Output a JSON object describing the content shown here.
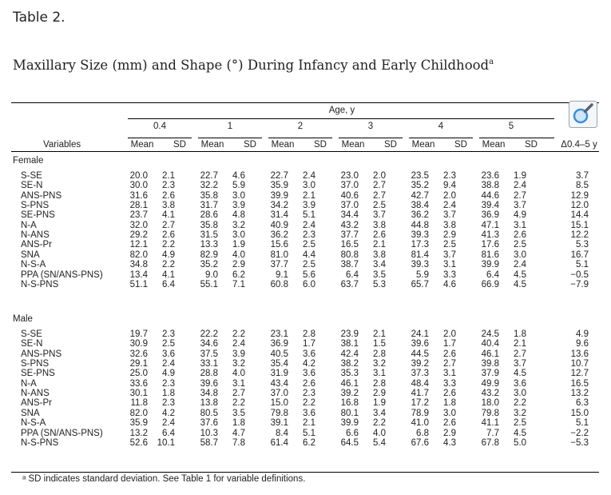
{
  "page_label": "Table 2.",
  "caption": {
    "text": "Maxillary Size (mm) and Shape (°) During Infancy and Early Childhood",
    "superscript": "a"
  },
  "table": {
    "age_header": "Age, y",
    "age_groups": [
      "0.4",
      "1",
      "2",
      "3",
      "4",
      "5"
    ],
    "variables_header": "Variables",
    "mean_label": "Mean",
    "sd_label": "SD",
    "delta_header": "Δ0.4–5 y",
    "sections": [
      {
        "name": "Female",
        "rows": [
          {
            "variable": "S-SE",
            "cells": [
              "20.0",
              "2.1",
              "22.7",
              "4.6",
              "22.7",
              "2.4",
              "23.0",
              "2.0",
              "23.5",
              "2.3",
              "23.6",
              "1.9",
              "3.7"
            ]
          },
          {
            "variable": "SE-N",
            "cells": [
              "30.0",
              "2.3",
              "32.2",
              "5.9",
              "35.9",
              "3.0",
              "37.0",
              "2.7",
              "35.2",
              "9.4",
              "38.8",
              "2.4",
              "8.5"
            ]
          },
          {
            "variable": "ANS-PNS",
            "cells": [
              "31.6",
              "2.6",
              "35.8",
              "3.0",
              "39.9",
              "2.1",
              "40.6",
              "2.7",
              "42.7",
              "2.0",
              "44.6",
              "2.7",
              "12.9"
            ]
          },
          {
            "variable": "S-PNS",
            "cells": [
              "28.1",
              "3.8",
              "31.7",
              "3.9",
              "34.2",
              "3.9",
              "37.0",
              "2.5",
              "38.4",
              "2.4",
              "39.4",
              "3.7",
              "12.0"
            ]
          },
          {
            "variable": "SE-PNS",
            "cells": [
              "23.7",
              "4.1",
              "28.6",
              "4.8",
              "31.4",
              "5.1",
              "34.4",
              "3.7",
              "36.2",
              "3.7",
              "36.9",
              "4.9",
              "14.4"
            ]
          },
          {
            "variable": "N-A",
            "cells": [
              "32.0",
              "2.7",
              "35.8",
              "3.2",
              "40.9",
              "2.4",
              "43.2",
              "3.8",
              "44.8",
              "3.8",
              "47.1",
              "3.1",
              "15.1"
            ]
          },
          {
            "variable": "N-ANS",
            "cells": [
              "29.2",
              "2.6",
              "31.5",
              "3.0",
              "36.2",
              "2.3",
              "37.7",
              "2.6",
              "39.3",
              "2.9",
              "41.3",
              "2.6",
              "12.2"
            ]
          },
          {
            "variable": "ANS-Pr",
            "cells": [
              "12.1",
              "2.2",
              "13.3",
              "1.9",
              "15.6",
              "2.5",
              "16.5",
              "2.1",
              "17.3",
              "2.5",
              "17.6",
              "2.5",
              "5.3"
            ]
          },
          {
            "variable": "SNA",
            "cells": [
              "82.0",
              "4.9",
              "82.9",
              "4.0",
              "81.0",
              "4.4",
              "80.8",
              "3.8",
              "81.4",
              "3.7",
              "81.6",
              "3.0",
              "16.7"
            ]
          },
          {
            "variable": "N-S-A",
            "cells": [
              "34.8",
              "2.2",
              "35.2",
              "2.9",
              "37.7",
              "2.5",
              "38.7",
              "3.4",
              "39.3",
              "3.1",
              "39.9",
              "2.4",
              "5.1"
            ]
          },
          {
            "variable": "PPA (SN/ANS-PNS)",
            "cells": [
              "13.4",
              "4.1",
              "9.0",
              "6.2",
              "9.1",
              "5.6",
              "6.4",
              "3.5",
              "5.9",
              "3.3",
              "6.4",
              "4.5",
              "−0.5"
            ]
          },
          {
            "variable": "N-S-PNS",
            "cells": [
              "51.1",
              "6.4",
              "55.1",
              "7.1",
              "60.8",
              "6.0",
              "63.7",
              "5.3",
              "65.7",
              "4.6",
              "66.9",
              "4.5",
              "−7.9"
            ]
          }
        ]
      },
      {
        "name": "Male",
        "rows": [
          {
            "variable": "S-SE",
            "cells": [
              "19.7",
              "2.3",
              "22.2",
              "2.2",
              "23.1",
              "2.8",
              "23.9",
              "2.1",
              "24.1",
              "2.0",
              "24.5",
              "1.8",
              "4.9"
            ]
          },
          {
            "variable": "SE-N",
            "cells": [
              "30.9",
              "2.5",
              "34.6",
              "2.4",
              "36.9",
              "1.7",
              "38.1",
              "1.5",
              "39.6",
              "1.7",
              "40.4",
              "2.1",
              "9.6"
            ]
          },
          {
            "variable": "ANS-PNS",
            "cells": [
              "32.6",
              "3.6",
              "37.5",
              "3.9",
              "40.5",
              "3.6",
              "42.4",
              "2.8",
              "44.5",
              "2.6",
              "46.1",
              "2.7",
              "13.6"
            ]
          },
          {
            "variable": "S-PNS",
            "cells": [
              "29.1",
              "2.4",
              "33.1",
              "3.2",
              "35.4",
              "4.2",
              "38.2",
              "3.2",
              "39.2",
              "2.7",
              "39.8",
              "3.7",
              "10.7"
            ]
          },
          {
            "variable": "SE-PNS",
            "cells": [
              "25.0",
              "4.9",
              "28.8",
              "4.0",
              "31.9",
              "3.6",
              "35.3",
              "3.1",
              "37.3",
              "3.1",
              "37.9",
              "4.5",
              "12.7"
            ]
          },
          {
            "variable": "N-A",
            "cells": [
              "33.6",
              "2.3",
              "39.6",
              "3.1",
              "43.4",
              "2.6",
              "46.1",
              "2.8",
              "48.4",
              "3.3",
              "49.9",
              "3.6",
              "16.5"
            ]
          },
          {
            "variable": "N-ANS",
            "cells": [
              "30.1",
              "1.8",
              "34.8",
              "2.7",
              "37.0",
              "2.3",
              "39.2",
              "2.9",
              "41.7",
              "2.6",
              "43.2",
              "3.0",
              "13.2"
            ]
          },
          {
            "variable": "ANS-Pr",
            "cells": [
              "11.8",
              "2.3",
              "13.8",
              "2.2",
              "15.0",
              "2.2",
              "16.8",
              "1.9",
              "17.2",
              "1.8",
              "18.0",
              "2.2",
              "6.3"
            ]
          },
          {
            "variable": "SNA",
            "cells": [
              "82.0",
              "4.2",
              "80.5",
              "3.5",
              "79.8",
              "3.6",
              "80.1",
              "3.4",
              "78.9",
              "3.0",
              "79.8",
              "3.2",
              "15.0"
            ]
          },
          {
            "variable": "N-S-A",
            "cells": [
              "35.9",
              "2.4",
              "37.6",
              "1.8",
              "39.1",
              "2.1",
              "39.9",
              "2.2",
              "41.0",
              "2.6",
              "41.1",
              "2.5",
              "5.1"
            ]
          },
          {
            "variable": "PPA (SN/ANS-PNS)",
            "cells": [
              "13.2",
              "6.4",
              "10.3",
              "4.7",
              "8.4",
              "5.1",
              "6.6",
              "4.0",
              "6.8",
              "2.9",
              "7.7",
              "4.5",
              "−2.2"
            ]
          },
          {
            "variable": "N-S-PNS",
            "cells": [
              "52.6",
              "10.1",
              "58.7",
              "7.8",
              "61.4",
              "6.2",
              "64.5",
              "5.4",
              "67.6",
              "4.3",
              "67.8",
              "5.0",
              "−5.3"
            ]
          }
        ]
      }
    ],
    "footnote": "ᵃ SD indicates standard deviation. See Table 1 for variable definitions."
  },
  "zoom_button": {
    "icon": "magnifier-icon",
    "accent": "#3a8fd6"
  }
}
